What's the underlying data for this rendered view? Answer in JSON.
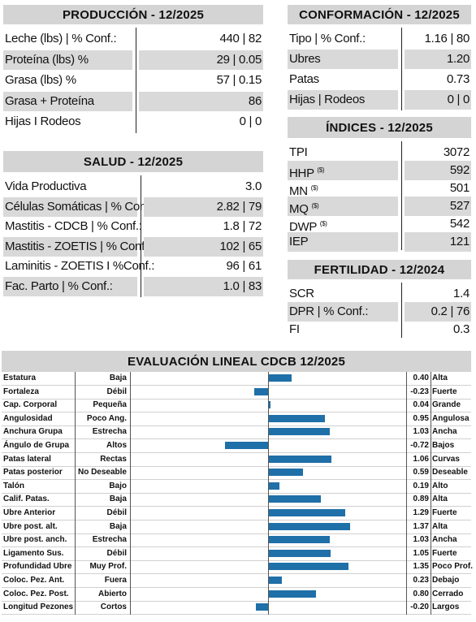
{
  "produccion": {
    "title": "PRODUCCIÓN - 12/2025",
    "rows": [
      {
        "label": "Leche (lbs) | % Conf.:",
        "value": "440 | 82"
      },
      {
        "label": "Proteína (lbs) %",
        "value": "29 | 0.05"
      },
      {
        "label": "Grasa (lbs) %",
        "value": "57 | 0.15"
      },
      {
        "label": "Grasa + Proteína",
        "value": "86"
      },
      {
        "label": "Hijas I Rodeos",
        "value": "0 | 0"
      }
    ]
  },
  "salud": {
    "title": "SALUD - 12/2025",
    "rows": [
      {
        "label": "Vida Productiva",
        "value": "3.0"
      },
      {
        "label": "Células Somáticas | % Conf.:",
        "value": "2.82 | 79"
      },
      {
        "label": "Mastitis - CDCB | % Conf.:",
        "value": "1.8 | 72"
      },
      {
        "label": "Mastitis - ZOETIS | % Conf.:",
        "value": "102 | 65"
      },
      {
        "label": "Laminitis - ZOETIS I %Conf.:",
        "value": "96 | 61"
      },
      {
        "label": "Fac. Parto | % Conf.:",
        "value": "1.0 | 83"
      }
    ]
  },
  "conformacion": {
    "title": "CONFORMACIÓN - 12/2025",
    "rows": [
      {
        "label": "Tipo | % Conf.:",
        "value": "1.16 | 80"
      },
      {
        "label": "Ubres",
        "value": "1.20"
      },
      {
        "label": "Patas",
        "value": "0.73"
      },
      {
        "label": "Hijas | Rodeos",
        "value": "0 | 0"
      }
    ]
  },
  "indices": {
    "title": "ÍNDICES - 12/2025",
    "rows": [
      {
        "label": "TPI",
        "sup": "",
        "value": "3072"
      },
      {
        "label": "HHP",
        "sup": "($)",
        "value": "592"
      },
      {
        "label": "MN",
        "sup": "($)",
        "value": "501"
      },
      {
        "label": "MQ",
        "sup": "($)",
        "value": "527"
      },
      {
        "label": "DWP",
        "sup": "($)",
        "value": "542"
      },
      {
        "label": "IEP",
        "sup": "",
        "value": "121"
      }
    ]
  },
  "fertilidad": {
    "title": "FERTILIDAD - 12/2024",
    "rows": [
      {
        "label": "SCR",
        "value": "1.4"
      },
      {
        "label": "DPR | % Conf.:",
        "value": "0.2 | 76"
      },
      {
        "label": "FI",
        "value": "0.3"
      }
    ]
  },
  "lineal": {
    "title": "EVALUACIÓN LINEAL CDCB 12/2025",
    "bar_color": "#1f6fa8",
    "scale_max": 1.6,
    "traits": [
      {
        "trait": "Estatura",
        "low": "Baja",
        "value": "0.40",
        "high": "Alta"
      },
      {
        "trait": "Fortaleza",
        "low": "Débil",
        "value": "-0.23",
        "high": "Fuerte"
      },
      {
        "trait": "Cap. Corporal",
        "low": "Pequeña",
        "value": "0.04",
        "high": "Grande"
      },
      {
        "trait": "Angulosidad",
        "low": "Poco Ang.",
        "value": "0.95",
        "high": "Angulosa"
      },
      {
        "trait": "Anchura Grupa",
        "low": "Estrecha",
        "value": "1.03",
        "high": "Ancha"
      },
      {
        "trait": "Ángulo de Grupa",
        "low": "Altos",
        "value": "-0.72",
        "high": "Bajos"
      },
      {
        "trait": "Patas lateral",
        "low": "Rectas",
        "value": "1.06",
        "high": "Curvas"
      },
      {
        "trait": "Patas posterior",
        "low": "No Deseable",
        "value": "0.59",
        "high": "Deseable"
      },
      {
        "trait": "Talón",
        "low": "Bajo",
        "value": "0.19",
        "high": "Alto"
      },
      {
        "trait": "Calif. Patas.",
        "low": "Baja",
        "value": "0.89",
        "high": "Alta"
      },
      {
        "trait": "Ubre Anterior",
        "low": "Débil",
        "value": "1.29",
        "high": "Fuerte"
      },
      {
        "trait": "Ubre post. alt.",
        "low": "Baja",
        "value": "1.37",
        "high": "Alta"
      },
      {
        "trait": "Ubre post. anch.",
        "low": "Estrecha",
        "value": "1.03",
        "high": "Ancha"
      },
      {
        "trait": "Ligamento Sus.",
        "low": "Débil",
        "value": "1.05",
        "high": "Fuerte"
      },
      {
        "trait": "Profundidad Ubre",
        "low": "Muy Prof.",
        "value": "1.35",
        "high": "Poco Prof."
      },
      {
        "trait": "Coloc. Pez. Ant.",
        "low": "Fuera",
        "value": "0.23",
        "high": "Debajo"
      },
      {
        "trait": "Coloc. Pez. Post.",
        "low": "Abierto",
        "value": "0.80",
        "high": "Cerrado"
      },
      {
        "trait": "Longitud Pezones",
        "low": "Cortos",
        "value": "-0.20",
        "high": "Largos"
      }
    ]
  }
}
